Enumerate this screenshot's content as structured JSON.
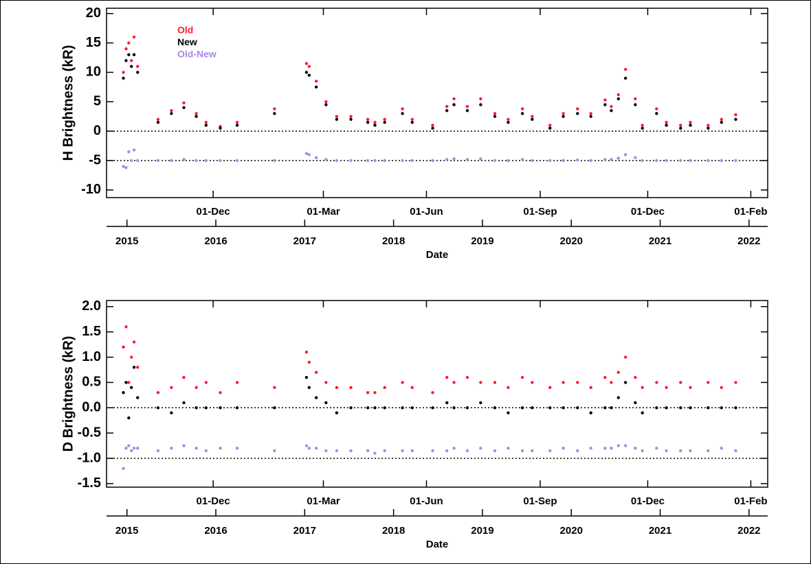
{
  "chart_data": [
    {
      "type": "scatter",
      "ylabel": "H Brightness (kR)",
      "xlabel": "Date",
      "xlim": [
        2014.77,
        2022.21
      ],
      "ylim": [
        -11.3,
        20.9
      ],
      "yticks": [
        -10,
        -5,
        0,
        5,
        10,
        15,
        20
      ],
      "xticks": [
        2015,
        2016,
        2017,
        2018,
        2019,
        2020,
        2021,
        2022
      ],
      "x2ticks": [
        {
          "value": 2015.97,
          "label": "01-Dec"
        },
        {
          "value": 2017.21,
          "label": "01-Mar"
        },
        {
          "value": 2018.37,
          "label": "01-Jun"
        },
        {
          "value": 2019.65,
          "label": "01-Sep"
        },
        {
          "value": 2020.86,
          "label": "01-Dec"
        },
        {
          "value": 2022.02,
          "label": "01-Feb"
        }
      ],
      "hlines": [
        0,
        -5
      ],
      "x": [
        2014.96,
        2014.99,
        2015.02,
        2015.05,
        2015.08,
        2015.12,
        2015.35,
        2015.5,
        2015.64,
        2015.78,
        2015.89,
        2016.05,
        2016.24,
        2016.66,
        2017.02,
        2017.05,
        2017.13,
        2017.24,
        2017.36,
        2017.52,
        2017.71,
        2017.79,
        2017.9,
        2018.1,
        2018.21,
        2018.44,
        2018.6,
        2018.68,
        2018.83,
        2018.98,
        2019.14,
        2019.29,
        2019.45,
        2019.56,
        2019.76,
        2019.91,
        2020.07,
        2020.22,
        2020.38,
        2020.45,
        2020.53,
        2020.61,
        2020.72,
        2020.8,
        2020.96,
        2021.07,
        2021.23,
        2021.34,
        2021.54,
        2021.69,
        2021.85
      ],
      "series": [
        {
          "name": "Old",
          "color": "#ff1a2e",
          "values": [
            10,
            14,
            15,
            12,
            16,
            11,
            2,
            3.5,
            4.8,
            3,
            1.5,
            0.8,
            1.5,
            3.8,
            11.5,
            11,
            8.5,
            5,
            2.5,
            2.5,
            2,
            1.5,
            2,
            3.8,
            2,
            1,
            4.2,
            5.5,
            4.2,
            5.5,
            3,
            2,
            3.8,
            2.5,
            1,
            3,
            3.8,
            3,
            5.3,
            4.2,
            6.2,
            10.5,
            5.5,
            1,
            3.8,
            1.5,
            1,
            1.5,
            1,
            2,
            2.8
          ]
        },
        {
          "name": "New",
          "color": "#000000",
          "values": [
            9,
            12,
            13,
            11,
            13,
            10,
            1.5,
            3,
            4,
            2.5,
            1,
            0.5,
            1,
            3,
            10,
            9.5,
            7.5,
            4.5,
            2,
            2,
            1.5,
            1,
            1.5,
            3,
            1.5,
            0.5,
            3.5,
            4.5,
            3.5,
            4.5,
            2.5,
            1.5,
            3,
            2,
            0.5,
            2.5,
            3,
            2.5,
            4.5,
            3.5,
            5.5,
            9,
            4.5,
            0.5,
            3,
            1,
            0.5,
            1,
            0.5,
            1.5,
            2
          ]
        },
        {
          "name": "Old-New",
          "color": "#a98be0",
          "values": [
            -6,
            -6.2,
            -3.5,
            -5,
            -3.2,
            -5,
            -5,
            -5,
            -4.8,
            -5,
            -5,
            -5,
            -5,
            -5,
            -3.8,
            -4,
            -4.5,
            -4.8,
            -5,
            -5,
            -5,
            -5,
            -5,
            -5,
            -5,
            -5,
            -4.8,
            -4.7,
            -4.8,
            -4.7,
            -5,
            -5,
            -4.8,
            -5,
            -5,
            -5,
            -4.9,
            -5,
            -4.8,
            -4.8,
            -4.6,
            -4,
            -4.5,
            -5,
            -5,
            -5,
            -5,
            -5,
            -5,
            -5,
            -5
          ]
        }
      ]
    },
    {
      "type": "scatter",
      "ylabel": "D Brightness (kR)",
      "xlabel": "Date",
      "xlim": [
        2014.77,
        2022.21
      ],
      "ylim": [
        -1.57,
        2.12
      ],
      "yticks": [
        {
          "value": -1.5,
          "label": "-1.5"
        },
        {
          "value": -1,
          "label": "-1.0"
        },
        -0.5,
        {
          "value": 0,
          "label": "0.0"
        },
        0.5,
        {
          "value": 1,
          "label": "1.0"
        },
        1.5,
        {
          "value": 2,
          "label": "2.0"
        }
      ],
      "xticks": [
        2015,
        2016,
        2017,
        2018,
        2019,
        2020,
        2021,
        2022
      ],
      "x2ticks": [
        {
          "value": 2015.97,
          "label": "01-Dec"
        },
        {
          "value": 2017.21,
          "label": "01-Mar"
        },
        {
          "value": 2018.37,
          "label": "01-Jun"
        },
        {
          "value": 2019.65,
          "label": "01-Sep"
        },
        {
          "value": 2020.86,
          "label": "01-Dec"
        },
        {
          "value": 2022.02,
          "label": "01-Feb"
        }
      ],
      "hlines": [
        0,
        -1
      ],
      "x": [
        2014.96,
        2014.99,
        2015.02,
        2015.05,
        2015.08,
        2015.12,
        2015.35,
        2015.5,
        2015.64,
        2015.78,
        2015.89,
        2016.05,
        2016.24,
        2016.66,
        2017.02,
        2017.05,
        2017.13,
        2017.24,
        2017.36,
        2017.52,
        2017.71,
        2017.79,
        2017.9,
        2018.1,
        2018.21,
        2018.44,
        2018.6,
        2018.68,
        2018.83,
        2018.98,
        2019.14,
        2019.29,
        2019.45,
        2019.56,
        2019.76,
        2019.91,
        2020.07,
        2020.22,
        2020.38,
        2020.45,
        2020.53,
        2020.61,
        2020.72,
        2020.8,
        2020.96,
        2021.07,
        2021.23,
        2021.34,
        2021.54,
        2021.69,
        2021.85
      ],
      "series": [
        {
          "color": "#ff1a2e",
          "values": [
            1.2,
            1.6,
            0.5,
            1,
            1.3,
            0.8,
            0.3,
            0.4,
            0.6,
            0.4,
            0.5,
            0.3,
            0.5,
            0.4,
            1.1,
            0.9,
            0.7,
            0.5,
            0.4,
            0.4,
            0.3,
            0.3,
            0.4,
            0.5,
            0.4,
            0.3,
            0.6,
            0.5,
            0.6,
            0.5,
            0.5,
            0.4,
            0.6,
            0.5,
            0.4,
            0.5,
            0.5,
            0.4,
            0.6,
            0.5,
            0.7,
            1.0,
            0.6,
            0.4,
            0.5,
            0.4,
            0.5,
            0.4,
            0.5,
            0.4,
            0.5
          ]
        },
        {
          "color": "#000000",
          "values": [
            0.3,
            0.5,
            -0.2,
            0.4,
            0.8,
            0.2,
            0,
            -0.1,
            0.1,
            0,
            0,
            0,
            0,
            0,
            0.6,
            0.4,
            0.2,
            0.1,
            -0.1,
            0,
            0,
            0,
            0,
            0,
            0,
            0,
            0.1,
            0,
            0,
            0.1,
            0,
            -0.1,
            0,
            0,
            0,
            0,
            0,
            -0.1,
            0,
            0,
            0.2,
            0.5,
            0.1,
            -0.1,
            0,
            0,
            0,
            0,
            0,
            0,
            0
          ]
        },
        {
          "color": "#a98be0",
          "values": [
            -1.2,
            -0.8,
            -0.75,
            -0.85,
            -0.8,
            -0.8,
            -0.85,
            -0.8,
            -0.75,
            -0.8,
            -0.85,
            -0.8,
            -0.8,
            -0.85,
            -0.75,
            -0.8,
            -0.8,
            -0.85,
            -0.85,
            -0.85,
            -0.85,
            -0.9,
            -0.85,
            -0.85,
            -0.85,
            -0.85,
            -0.85,
            -0.8,
            -0.85,
            -0.8,
            -0.85,
            -0.8,
            -0.85,
            -0.85,
            -0.85,
            -0.8,
            -0.85,
            -0.8,
            -0.8,
            -0.8,
            -0.75,
            -0.75,
            -0.8,
            -0.85,
            -0.8,
            -0.85,
            -0.85,
            -0.85,
            -0.85,
            -0.8,
            -0.85
          ]
        }
      ]
    }
  ]
}
